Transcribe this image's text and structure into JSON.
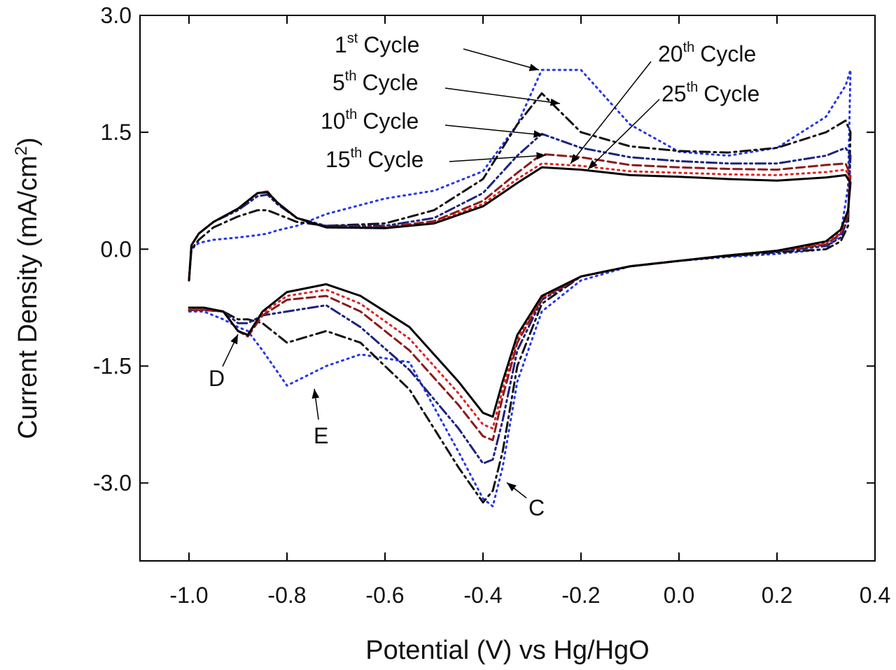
{
  "chart_data": {
    "type": "line",
    "x_label": "Potential (V) vs Hg/HgO",
    "y_label": {
      "text": "Current Density (mA/cm",
      "sup": "2",
      "tail": ")"
    },
    "xlim": [
      -1.1,
      0.4
    ],
    "xticks": [
      {
        "value": -1.0,
        "label": "-1.0"
      },
      -0.8,
      -0.6,
      -0.4,
      -0.2,
      {
        "value": 0.0,
        "label": "0.0"
      },
      0.2,
      0.4
    ],
    "ylim": [
      -4,
      3
    ],
    "yticks": [
      {
        "value": 3.0,
        "label": "3.0"
      },
      1.5,
      {
        "value": 0.0,
        "label": "0.0"
      },
      -1.5,
      {
        "value": -3.0,
        "label": "-3.0"
      }
    ],
    "x": [
      -1.0,
      -0.995,
      -0.98,
      -0.95,
      -0.9,
      -0.86,
      -0.84,
      -0.82,
      -0.78,
      -0.72,
      -0.6,
      -0.5,
      -0.4,
      -0.33,
      -0.28,
      -0.2,
      -0.1,
      0.0,
      0.1,
      0.2,
      0.3,
      0.34,
      0.35,
      0.345,
      0.33,
      0.3,
      0.2,
      0.1,
      0.0,
      -0.1,
      -0.2,
      -0.28,
      -0.33,
      -0.36,
      -0.38,
      -0.4,
      -0.45,
      -0.55,
      -0.65,
      -0.72,
      -0.8,
      -0.85,
      -0.88,
      -0.9,
      -0.93,
      -0.97,
      -1.0
    ],
    "series": [
      {
        "color": "#2336e6",
        "dash": "dotted",
        "values": [
          -0.4,
          0.0,
          0.08,
          0.12,
          0.15,
          0.18,
          0.2,
          0.24,
          0.3,
          0.45,
          0.65,
          0.75,
          1.0,
          1.6,
          2.3,
          2.3,
          1.6,
          1.25,
          1.2,
          1.3,
          1.7,
          2.1,
          2.3,
          0.8,
          0.2,
          0.0,
          -0.06,
          -0.1,
          -0.15,
          -0.22,
          -0.4,
          -0.8,
          -1.7,
          -2.8,
          -3.3,
          -3.2,
          -2.6,
          -1.45,
          -1.35,
          -1.5,
          -1.75,
          -1.3,
          -1.05,
          -1.0,
          -0.9,
          -0.8,
          -0.8
        ]
      },
      {
        "color": "#111111",
        "dash": "dash-dot",
        "values": [
          -0.4,
          0.0,
          0.12,
          0.28,
          0.42,
          0.5,
          0.5,
          0.45,
          0.35,
          0.3,
          0.33,
          0.5,
          0.9,
          1.6,
          2.0,
          1.5,
          1.32,
          1.26,
          1.24,
          1.3,
          1.5,
          1.65,
          1.5,
          0.3,
          0.1,
          0.0,
          -0.04,
          -0.09,
          -0.15,
          -0.22,
          -0.35,
          -0.7,
          -1.5,
          -2.6,
          -3.1,
          -3.25,
          -2.8,
          -1.8,
          -1.2,
          -1.05,
          -1.2,
          -0.95,
          -0.9,
          -0.9,
          -0.8,
          -0.78,
          -0.78
        ]
      },
      {
        "color": "#1a237e",
        "dash": "dash-dot-dot",
        "values": [
          -0.4,
          0.05,
          0.2,
          0.35,
          0.5,
          0.68,
          0.7,
          0.58,
          0.4,
          0.3,
          0.3,
          0.4,
          0.72,
          1.2,
          1.48,
          1.3,
          1.18,
          1.13,
          1.1,
          1.1,
          1.2,
          1.3,
          1.2,
          0.4,
          0.15,
          0.04,
          -0.03,
          -0.08,
          -0.15,
          -0.22,
          -0.35,
          -0.65,
          -1.3,
          -2.2,
          -2.7,
          -2.75,
          -2.3,
          -1.55,
          -1.0,
          -0.72,
          -0.8,
          -0.85,
          -0.95,
          -0.95,
          -0.8,
          -0.78,
          -0.78
        ]
      },
      {
        "color": "#8b1a1a",
        "dash": "dashed",
        "values": [
          -0.4,
          0.05,
          0.2,
          0.35,
          0.52,
          0.72,
          0.74,
          0.6,
          0.4,
          0.28,
          0.28,
          0.36,
          0.62,
          0.98,
          1.22,
          1.18,
          1.08,
          1.05,
          1.03,
          1.02,
          1.08,
          1.1,
          0.95,
          0.45,
          0.2,
          0.06,
          -0.02,
          -0.08,
          -0.15,
          -0.22,
          -0.35,
          -0.63,
          -1.2,
          -1.9,
          -2.45,
          -2.4,
          -2.0,
          -1.3,
          -0.8,
          -0.6,
          -0.65,
          -0.85,
          -1.12,
          -1.05,
          -0.8,
          -0.78,
          -0.78
        ]
      },
      {
        "color": "#e02020",
        "dash": "dotted",
        "values": [
          -0.4,
          0.05,
          0.2,
          0.35,
          0.52,
          0.72,
          0.74,
          0.6,
          0.4,
          0.28,
          0.27,
          0.34,
          0.58,
          0.9,
          1.1,
          1.07,
          1.0,
          0.98,
          0.96,
          0.95,
          0.99,
          1.02,
          0.9,
          0.5,
          0.22,
          0.08,
          -0.02,
          -0.08,
          -0.15,
          -0.22,
          -0.35,
          -0.62,
          -1.15,
          -1.8,
          -2.3,
          -2.25,
          -1.85,
          -1.15,
          -0.7,
          -0.52,
          -0.6,
          -0.82,
          -1.1,
          -1.05,
          -0.8,
          -0.77,
          -0.77
        ]
      },
      {
        "color": "#000000",
        "dash": "solid",
        "values": [
          -0.4,
          0.05,
          0.2,
          0.35,
          0.52,
          0.72,
          0.73,
          0.6,
          0.4,
          0.28,
          0.27,
          0.33,
          0.55,
          0.85,
          1.05,
          1.02,
          0.95,
          0.93,
          0.9,
          0.88,
          0.92,
          0.95,
          0.85,
          0.5,
          0.25,
          0.1,
          -0.02,
          -0.08,
          -0.15,
          -0.22,
          -0.35,
          -0.6,
          -1.1,
          -1.7,
          -2.15,
          -2.1,
          -1.7,
          -1.0,
          -0.6,
          -0.45,
          -0.55,
          -0.8,
          -1.1,
          -1.05,
          -0.8,
          -0.75,
          -0.75
        ]
      }
    ],
    "annotations": [
      {
        "text": "1",
        "sup": "st",
        "tail": "Cycle"
      },
      {
        "text": "5",
        "sup": "th",
        "tail": "Cycle"
      },
      {
        "text": "10",
        "sup": "th",
        "tail": "Cycle"
      },
      {
        "text": "15",
        "sup": "th",
        "tail": "Cycle"
      },
      {
        "text": "20",
        "sup": "th",
        "tail": "Cycle"
      },
      {
        "text": "25",
        "sup": "th",
        "tail": "Cycle"
      },
      {
        "text": "D"
      },
      {
        "text": "E"
      },
      {
        "text": "C"
      }
    ]
  }
}
